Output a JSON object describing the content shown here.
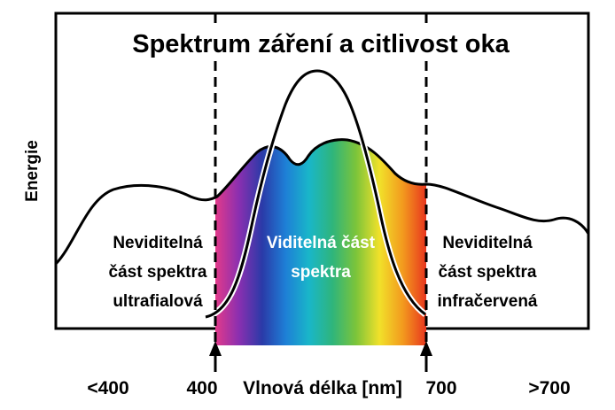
{
  "chart_data": {
    "type": "area",
    "title": "Spektrum záření a citlivost oka",
    "ylabel": "Energie",
    "xlabel": "Vlnová délka [nm]",
    "x_ticks": [
      "<400",
      "400",
      "700",
      ">700"
    ],
    "regions": [
      {
        "lines": [
          "Neviditelná",
          "část spektra",
          "ultrafialová"
        ],
        "color": "#000000"
      },
      {
        "lines": [
          "Viditelná část",
          "spektra"
        ],
        "color": "#ffffff"
      },
      {
        "lines": [
          "Neviditelná",
          "část spektra",
          "infračervená"
        ],
        "color": "#000000"
      }
    ],
    "visible_range_nm": [
      400,
      700
    ],
    "series": [
      {
        "curve": "radiation",
        "color": "#000000"
      },
      {
        "curve": "eye-sensitivity",
        "color": "#000000"
      }
    ],
    "gradient_colors": [
      "#e23a8a",
      "#8b2fb0",
      "#2a3aa8",
      "#1e7fd6",
      "#19b6c9",
      "#2fb57b",
      "#7cc43a",
      "#f1e12a",
      "#f39a1e",
      "#e8361e"
    ],
    "grid": false,
    "legend": "none"
  }
}
